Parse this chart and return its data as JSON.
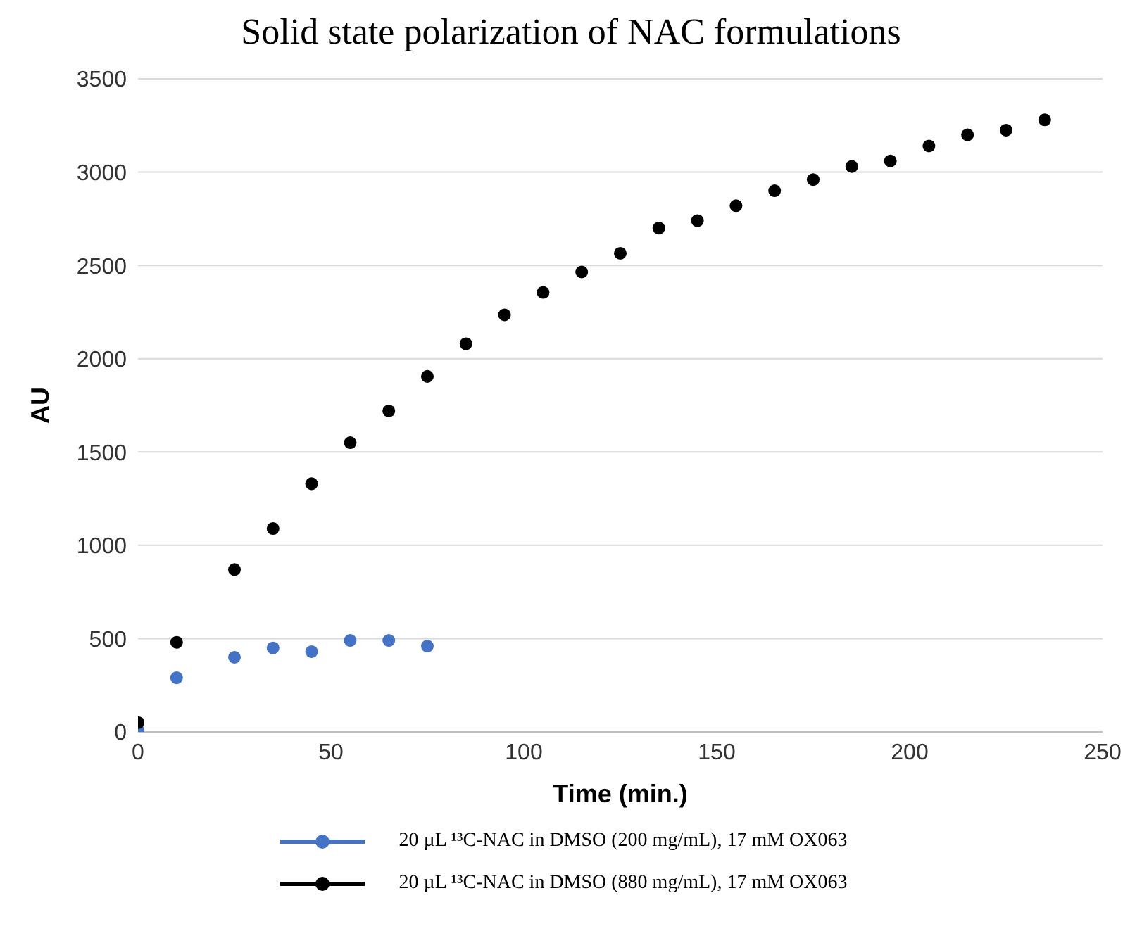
{
  "chart_data": {
    "type": "scatter",
    "title": "Solid state polarization of NAC formulations",
    "xlabel": "Time (min.)",
    "ylabel": "AU",
    "xlim": [
      0,
      250
    ],
    "xticks": [
      0,
      50,
      100,
      150,
      200,
      250
    ],
    "ylim": [
      0,
      3500
    ],
    "yticks": [
      0,
      500,
      1000,
      1500,
      2000,
      2500,
      3000,
      3500
    ],
    "grid": "y",
    "legend": "bottom",
    "marker": "circle",
    "series": [
      {
        "name": "20 µL ¹³C-NAC in DMSO (200 mg/mL), 17 mM OX063",
        "color": "#4472c4",
        "x": [
          0,
          10,
          25,
          35,
          45,
          55,
          65,
          75
        ],
        "values": [
          10,
          290,
          400,
          450,
          430,
          490,
          490,
          460
        ]
      },
      {
        "name": "20 µL ¹³C-NAC in DMSO (880 mg/mL), 17 mM OX063",
        "color": "#000000",
        "x": [
          0,
          10,
          25,
          35,
          45,
          55,
          65,
          75,
          85,
          95,
          105,
          115,
          125,
          135,
          145,
          155,
          165,
          175,
          185,
          195,
          205,
          215,
          225,
          235
        ],
        "values": [
          50,
          480,
          870,
          1090,
          1330,
          1550,
          1720,
          1905,
          2080,
          2235,
          2355,
          2465,
          2565,
          2700,
          2740,
          2820,
          2900,
          2960,
          3030,
          3060,
          3140,
          3200,
          3225,
          3280
        ]
      }
    ]
  }
}
